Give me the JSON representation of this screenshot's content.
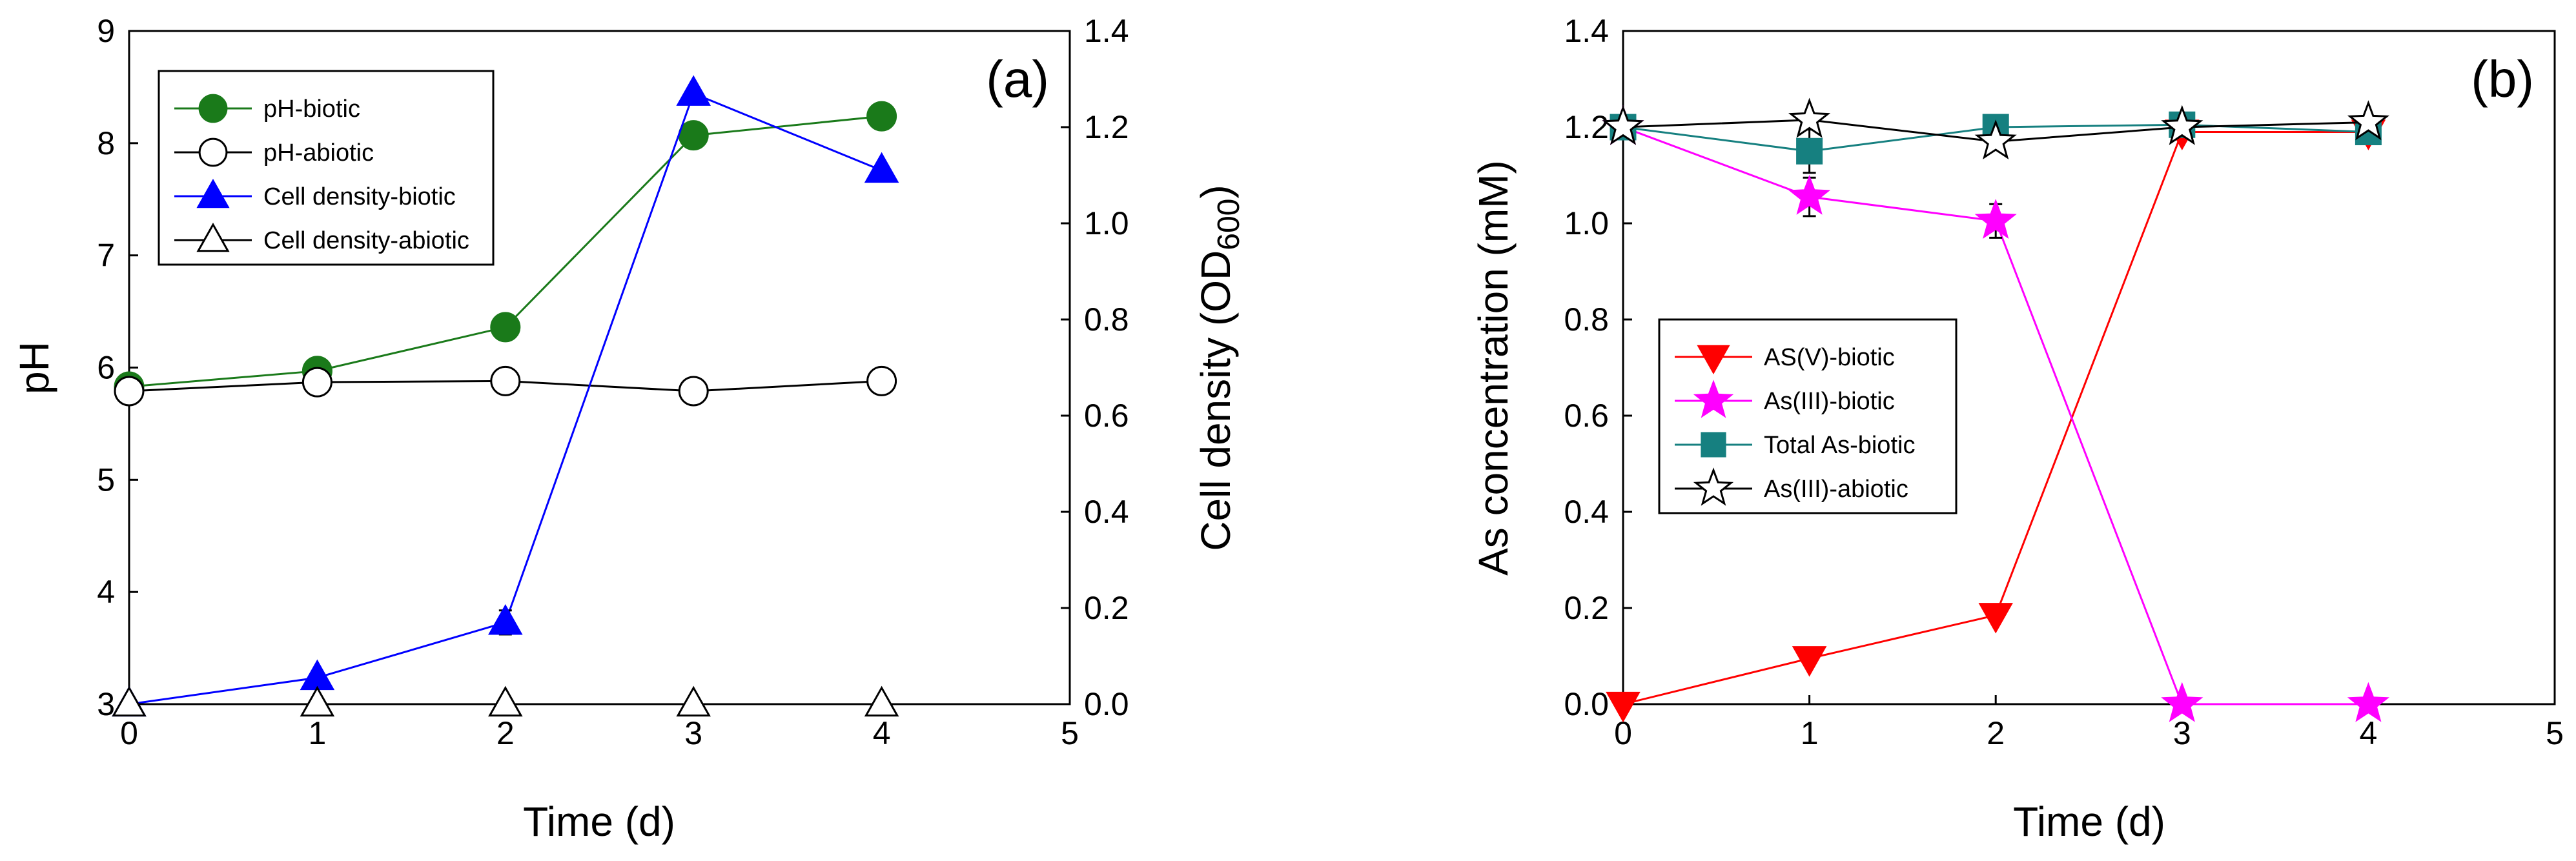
{
  "chart_data": [
    {
      "type": "line",
      "panel_label": "(a)",
      "xlabel": "Time (d)",
      "ylabel": "pH",
      "ylabel2_main": "Cell density (OD",
      "ylabel2_sub": "600",
      "ylabel2_close": ")",
      "xlim": [
        0,
        5
      ],
      "ylim": [
        3,
        9
      ],
      "y2lim": [
        0,
        1.4
      ],
      "x_ticks": [
        "0",
        "1",
        "2",
        "3",
        "4",
        "5"
      ],
      "y_ticks": [
        "3",
        "4",
        "5",
        "6",
        "7",
        "8",
        "9"
      ],
      "y2_ticks": [
        "0.0",
        "0.2",
        "0.4",
        "0.6",
        "0.8",
        "1.0",
        "1.2",
        "1.4"
      ],
      "legend_position": "top-left",
      "series": [
        {
          "name": "pH-biotic",
          "axis": "left",
          "marker": "circle",
          "filled": true,
          "color": "#1a7a1a",
          "x": [
            0,
            1,
            2,
            3,
            4
          ],
          "y": [
            5.83,
            5.97,
            6.36,
            8.07,
            8.24
          ],
          "err": [
            0,
            0,
            0,
            0,
            0
          ]
        },
        {
          "name": "pH-abiotic",
          "axis": "left",
          "marker": "circle",
          "filled": false,
          "color": "#000000",
          "x": [
            0,
            1,
            2,
            3,
            4
          ],
          "y": [
            5.79,
            5.87,
            5.88,
            5.79,
            5.88
          ],
          "err": [
            0,
            0,
            0,
            0,
            0
          ]
        },
        {
          "name": "Cell density-biotic",
          "axis": "right",
          "marker": "triangle-up",
          "filled": true,
          "color": "#0000ff",
          "x": [
            0,
            1,
            2,
            3,
            4
          ],
          "y": [
            0.0,
            0.055,
            0.17,
            1.27,
            1.11
          ],
          "err": [
            0,
            0,
            0.025,
            0,
            0
          ]
        },
        {
          "name": "Cell density-abiotic",
          "axis": "right",
          "marker": "triangle-up",
          "filled": false,
          "color": "#000000",
          "x": [
            0,
            1,
            2,
            3,
            4
          ],
          "y": [
            0.0,
            0.0,
            0.0,
            0.0,
            0.0
          ],
          "err": [
            0,
            0,
            0,
            0,
            0
          ]
        }
      ]
    },
    {
      "type": "line",
      "panel_label": "(b)",
      "xlabel": "Time (d)",
      "ylabel": "As concentration (mM)",
      "xlim": [
        0,
        5
      ],
      "ylim": [
        0,
        1.4
      ],
      "x_ticks": [
        "0",
        "1",
        "2",
        "3",
        "4",
        "5"
      ],
      "y_ticks": [
        "0.0",
        "0.2",
        "0.4",
        "0.6",
        "0.8",
        "1.0",
        "1.2",
        "1.4"
      ],
      "legend_position": "middle-left",
      "series": [
        {
          "name": "AS(V)-biotic",
          "marker": "triangle-down",
          "filled": true,
          "color": "#ff0000",
          "x": [
            0,
            1,
            2,
            3,
            4
          ],
          "y": [
            0.0,
            0.095,
            0.185,
            1.19,
            1.19
          ],
          "err": [
            0,
            0,
            0,
            0,
            0
          ]
        },
        {
          "name": "As(III)-biotic",
          "marker": "star",
          "filled": true,
          "color": "#ff00ff",
          "x": [
            0,
            1,
            2,
            3,
            4
          ],
          "y": [
            1.2,
            1.055,
            1.005,
            0.0,
            0.0
          ],
          "err": [
            0,
            0.04,
            0.035,
            0,
            0
          ]
        },
        {
          "name": "Total As-biotic",
          "marker": "square",
          "filled": true,
          "color": "#168080",
          "x": [
            0,
            1,
            2,
            3,
            4
          ],
          "y": [
            1.2,
            1.15,
            1.2,
            1.205,
            1.19
          ],
          "err": [
            0,
            0.045,
            0,
            0,
            0
          ]
        },
        {
          "name": "As(III)-abiotic",
          "marker": "star",
          "filled": false,
          "color": "#000000",
          "x": [
            0,
            1,
            2,
            3,
            4
          ],
          "y": [
            1.2,
            1.215,
            1.17,
            1.2,
            1.21
          ],
          "err": [
            0,
            0,
            0,
            0,
            0
          ]
        }
      ]
    }
  ]
}
